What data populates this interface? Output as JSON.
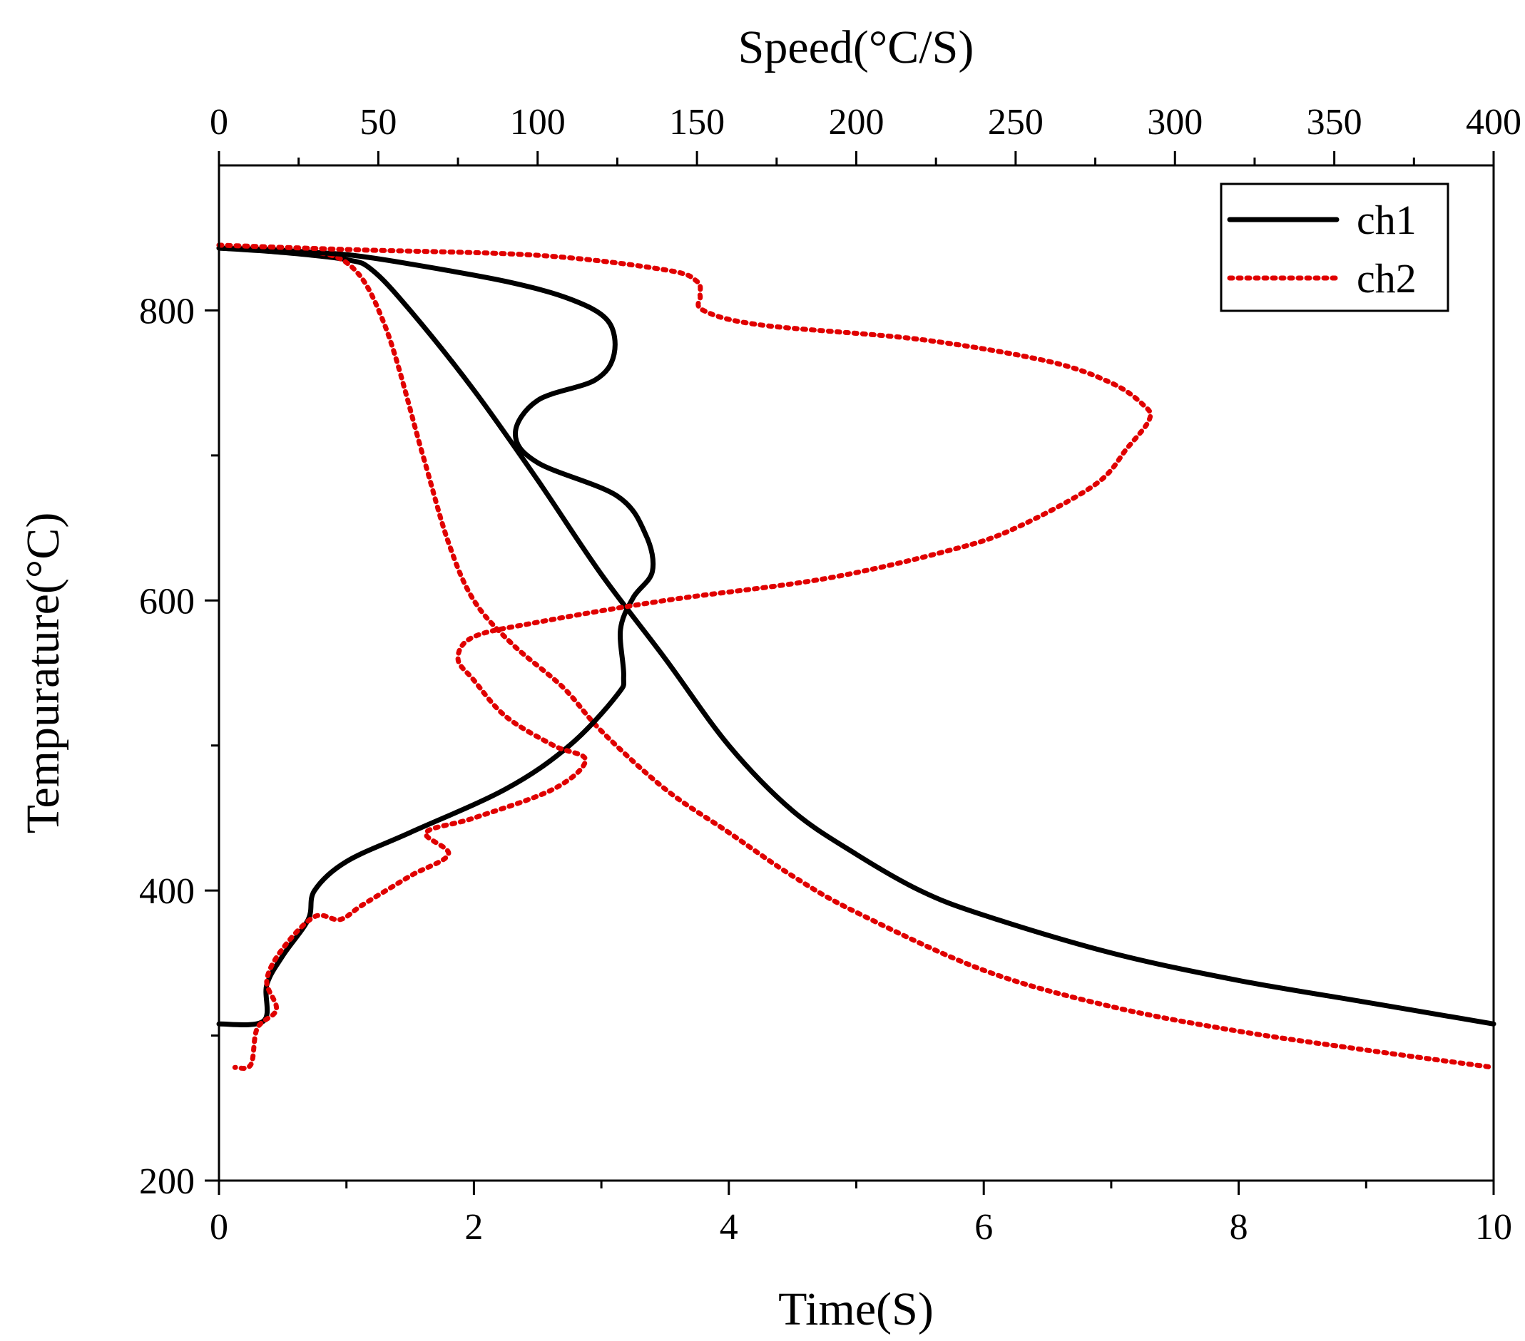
{
  "chart_data": {
    "type": "line",
    "title": "",
    "xlabel": "Time(S)",
    "x2label": "Speed(°C/S)",
    "ylabel": "Tempurature(°C)",
    "xlim": [
      0,
      10
    ],
    "x2lim": [
      0,
      400
    ],
    "ylim": [
      200,
      900
    ],
    "x_ticks": [
      0,
      2,
      4,
      6,
      8,
      10
    ],
    "x2_ticks": [
      0,
      50,
      100,
      150,
      200,
      250,
      300,
      350,
      400
    ],
    "y_ticks": [
      200,
      400,
      600,
      800
    ],
    "legend": {
      "position": "top-right",
      "entries": [
        "ch1",
        "ch2"
      ]
    },
    "colors": {
      "ch1": "#000000",
      "ch2": "#e00000"
    },
    "series": [
      {
        "name": "ch1",
        "kind": "temperature-vs-time",
        "x": [
          0,
          0.5,
          1.0,
          1.2,
          1.5,
          2.0,
          2.5,
          3.0,
          3.5,
          4.0,
          4.5,
          5.0,
          5.5,
          6.0,
          7.0,
          8.0,
          9.0,
          10.0
        ],
        "y": [
          843,
          840,
          835,
          828,
          800,
          745,
          683,
          618,
          560,
          500,
          455,
          425,
          400,
          383,
          357,
          338,
          323,
          308
        ]
      },
      {
        "name": "ch2",
        "kind": "temperature-vs-time",
        "x": [
          0,
          0.5,
          1.0,
          1.3,
          1.6,
          1.8,
          2.0,
          2.3,
          2.7,
          3.0,
          3.5,
          4.0,
          4.5,
          5.0,
          6.0,
          7.0,
          8.0,
          9.0,
          10.0
        ],
        "y": [
          845,
          842,
          833,
          790,
          700,
          640,
          600,
          570,
          540,
          510,
          470,
          440,
          410,
          385,
          345,
          320,
          303,
          290,
          278
        ]
      },
      {
        "name": "ch1",
        "kind": "temperature-vs-speed",
        "speed": [
          0,
          15,
          30,
          42,
          60,
          90,
          110,
          122,
          124,
          118,
          100,
          93,
          100,
          125,
          134,
          136,
          130,
          126,
          127,
          125,
          110,
          90,
          60,
          40,
          30,
          28,
          20,
          15,
          14,
          0
        ],
        "y": [
          843,
          842,
          840,
          838,
          832,
          820,
          808,
          793,
          770,
          752,
          738,
          715,
          695,
          672,
          645,
          620,
          602,
          580,
          548,
          535,
          500,
          470,
          440,
          420,
          400,
          380,
          355,
          335,
          310,
          308
        ]
      },
      {
        "name": "ch2",
        "kind": "temperature-vs-speed",
        "speed": [
          0,
          40,
          100,
          140,
          150,
          151,
          152,
          170,
          220,
          260,
          280,
          290,
          292,
          285,
          275,
          250,
          230,
          190,
          140,
          100,
          80,
          75,
          80,
          90,
          105,
          115,
          105,
          80,
          65,
          72,
          60,
          45,
          38,
          30,
          20,
          15,
          18,
          12,
          10,
          5
        ],
        "y": [
          845,
          842,
          838,
          828,
          820,
          810,
          800,
          790,
          780,
          765,
          750,
          735,
          725,
          705,
          680,
          650,
          635,
          615,
          600,
          585,
          575,
          560,
          545,
          520,
          500,
          490,
          470,
          450,
          440,
          425,
          410,
          390,
          380,
          382,
          360,
          338,
          318,
          305,
          280,
          278
        ]
      }
    ]
  }
}
